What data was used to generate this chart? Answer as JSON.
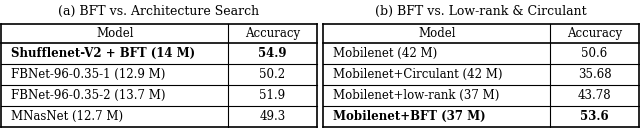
{
  "table_a": {
    "title": "(a) BFT vs. Architecture Search",
    "headers": [
      "Model",
      "Accuracy"
    ],
    "rows": [
      [
        "Shufflenet-V2 + BFT (14 M)",
        "54.9"
      ],
      [
        "FBNet-96-0.35-1 (12.9 M)",
        "50.2"
      ],
      [
        "FBNet-96-0.35-2 (13.7 M)",
        "51.9"
      ],
      [
        "MNasNet (12.7 M)",
        "49.3"
      ]
    ],
    "bold_rows": [
      0
    ],
    "bold_cols": [
      1
    ]
  },
  "table_b": {
    "title": "(b) BFT vs. Low-rank & Circulant",
    "headers": [
      "Model",
      "Accuracy"
    ],
    "rows": [
      [
        "Mobilenet (42 M)",
        "50.6"
      ],
      [
        "Mobilenet+Circulant (42 M)",
        "35.68"
      ],
      [
        "Mobilenet+low-rank (37 M)",
        "43.78"
      ],
      [
        "Mobilenet+BFT (37 M)",
        "53.6"
      ]
    ],
    "bold_rows": [
      3
    ],
    "bold_cols": [
      1
    ]
  },
  "background_color": "#ffffff",
  "title_fontsize": 9,
  "cell_fontsize": 8.5,
  "header_fontsize": 8.5
}
